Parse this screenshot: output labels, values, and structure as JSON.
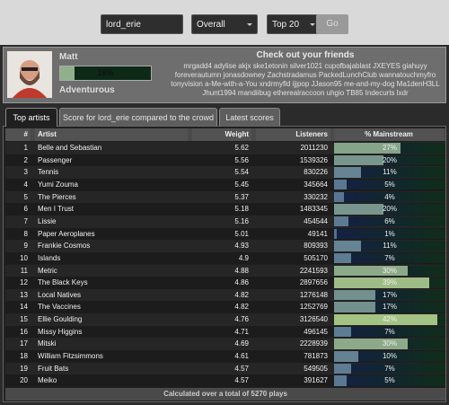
{
  "controls": {
    "username": "lord_erie",
    "period": "Overall",
    "limit": "Top 20",
    "button": "Go"
  },
  "profile": {
    "name": "Matt",
    "mainstream": 16,
    "mainstream_label": "16%",
    "label": "Adventurous"
  },
  "friends": {
    "title": "Check out your friends",
    "lines": [
      "mrgadd4 adylise akjx ske1etonin silver1021 cupofbajablast JXEYES giahuyy",
      "foreverautumn jonasdowney Zachstradamus PackedLunchClub wannatouchmyfro",
      "tonyvision a-Me-with-a-You xndrmyfld ijjpop JJason95 me-and-my-dog Ma1denH3LL",
      "Jhunt1994 mandiibug etherealraccoon uhgio TB85 Indecurts lxdr"
    ]
  },
  "tabs": [
    "Top artists",
    "Score for lord_erie compared to the crowd",
    "Latest scores"
  ],
  "table": {
    "columns": [
      "#",
      "Artist",
      "Weight",
      "Listeners",
      "% Mainstream"
    ],
    "rows": [
      {
        "rank": 1,
        "artist": "Belle and Sebastian",
        "weight": 5.62,
        "listeners": 2011230,
        "mainstream": 27,
        "mainstream_label": "27%"
      },
      {
        "rank": 2,
        "artist": "Passenger",
        "weight": 5.56,
        "listeners": 1539326,
        "mainstream": 20,
        "mainstream_label": "20%"
      },
      {
        "rank": 3,
        "artist": "Tennis",
        "weight": 5.54,
        "listeners": 830226,
        "mainstream": 11,
        "mainstream_label": "11%"
      },
      {
        "rank": 4,
        "artist": "Yumi Zouma",
        "weight": 5.45,
        "listeners": 345664,
        "mainstream": 5,
        "mainstream_label": "5%"
      },
      {
        "rank": 5,
        "artist": "The Pierces",
        "weight": 5.37,
        "listeners": 330232,
        "mainstream": 4,
        "mainstream_label": "4%"
      },
      {
        "rank": 6,
        "artist": "Men I Trust",
        "weight": 5.18,
        "listeners": 1483345,
        "mainstream": 20,
        "mainstream_label": "20%"
      },
      {
        "rank": 7,
        "artist": "Lissie",
        "weight": 5.16,
        "listeners": 454544,
        "mainstream": 6,
        "mainstream_label": "6%"
      },
      {
        "rank": 8,
        "artist": "Paper Aeroplanes",
        "weight": 5.01,
        "listeners": 49141,
        "mainstream": 1,
        "mainstream_label": "1%"
      },
      {
        "rank": 9,
        "artist": "Frankie Cosmos",
        "weight": 4.93,
        "listeners": 809393,
        "mainstream": 11,
        "mainstream_label": "11%"
      },
      {
        "rank": 10,
        "artist": "Islands",
        "weight": 4.9,
        "listeners": 505170,
        "mainstream": 7,
        "mainstream_label": "7%"
      },
      {
        "rank": 11,
        "artist": "Metric",
        "weight": 4.88,
        "listeners": 2241593,
        "mainstream": 30,
        "mainstream_label": "30%"
      },
      {
        "rank": 12,
        "artist": "The Black Keys",
        "weight": 4.86,
        "listeners": 2897656,
        "mainstream": 39,
        "mainstream_label": "39%"
      },
      {
        "rank": 13,
        "artist": "Local Natives",
        "weight": 4.82,
        "listeners": 1276148,
        "mainstream": 17,
        "mainstream_label": "17%"
      },
      {
        "rank": 14,
        "artist": "The Vaccines",
        "weight": 4.82,
        "listeners": 1252769,
        "mainstream": 17,
        "mainstream_label": "17%"
      },
      {
        "rank": 15,
        "artist": "Ellie Goulding",
        "weight": 4.76,
        "listeners": 3126540,
        "mainstream": 42,
        "mainstream_label": "42%"
      },
      {
        "rank": 16,
        "artist": "Missy Higgins",
        "weight": 4.71,
        "listeners": 496145,
        "mainstream": 7,
        "mainstream_label": "7%"
      },
      {
        "rank": 17,
        "artist": "Mitski",
        "weight": 4.69,
        "listeners": 2228939,
        "mainstream": 30,
        "mainstream_label": "30%"
      },
      {
        "rank": 18,
        "artist": "William Fitzsimmons",
        "weight": 4.61,
        "listeners": 781873,
        "mainstream": 10,
        "mainstream_label": "10%"
      },
      {
        "rank": 19,
        "artist": "Fruit Bats",
        "weight": 4.57,
        "listeners": 549505,
        "mainstream": 7,
        "mainstream_label": "7%"
      },
      {
        "rank": 20,
        "artist": "Meiko",
        "weight": 4.57,
        "listeners": 391627,
        "mainstream": 5,
        "mainstream_label": "5%"
      }
    ],
    "footer": "Calculated over a total of 5270 plays"
  }
}
